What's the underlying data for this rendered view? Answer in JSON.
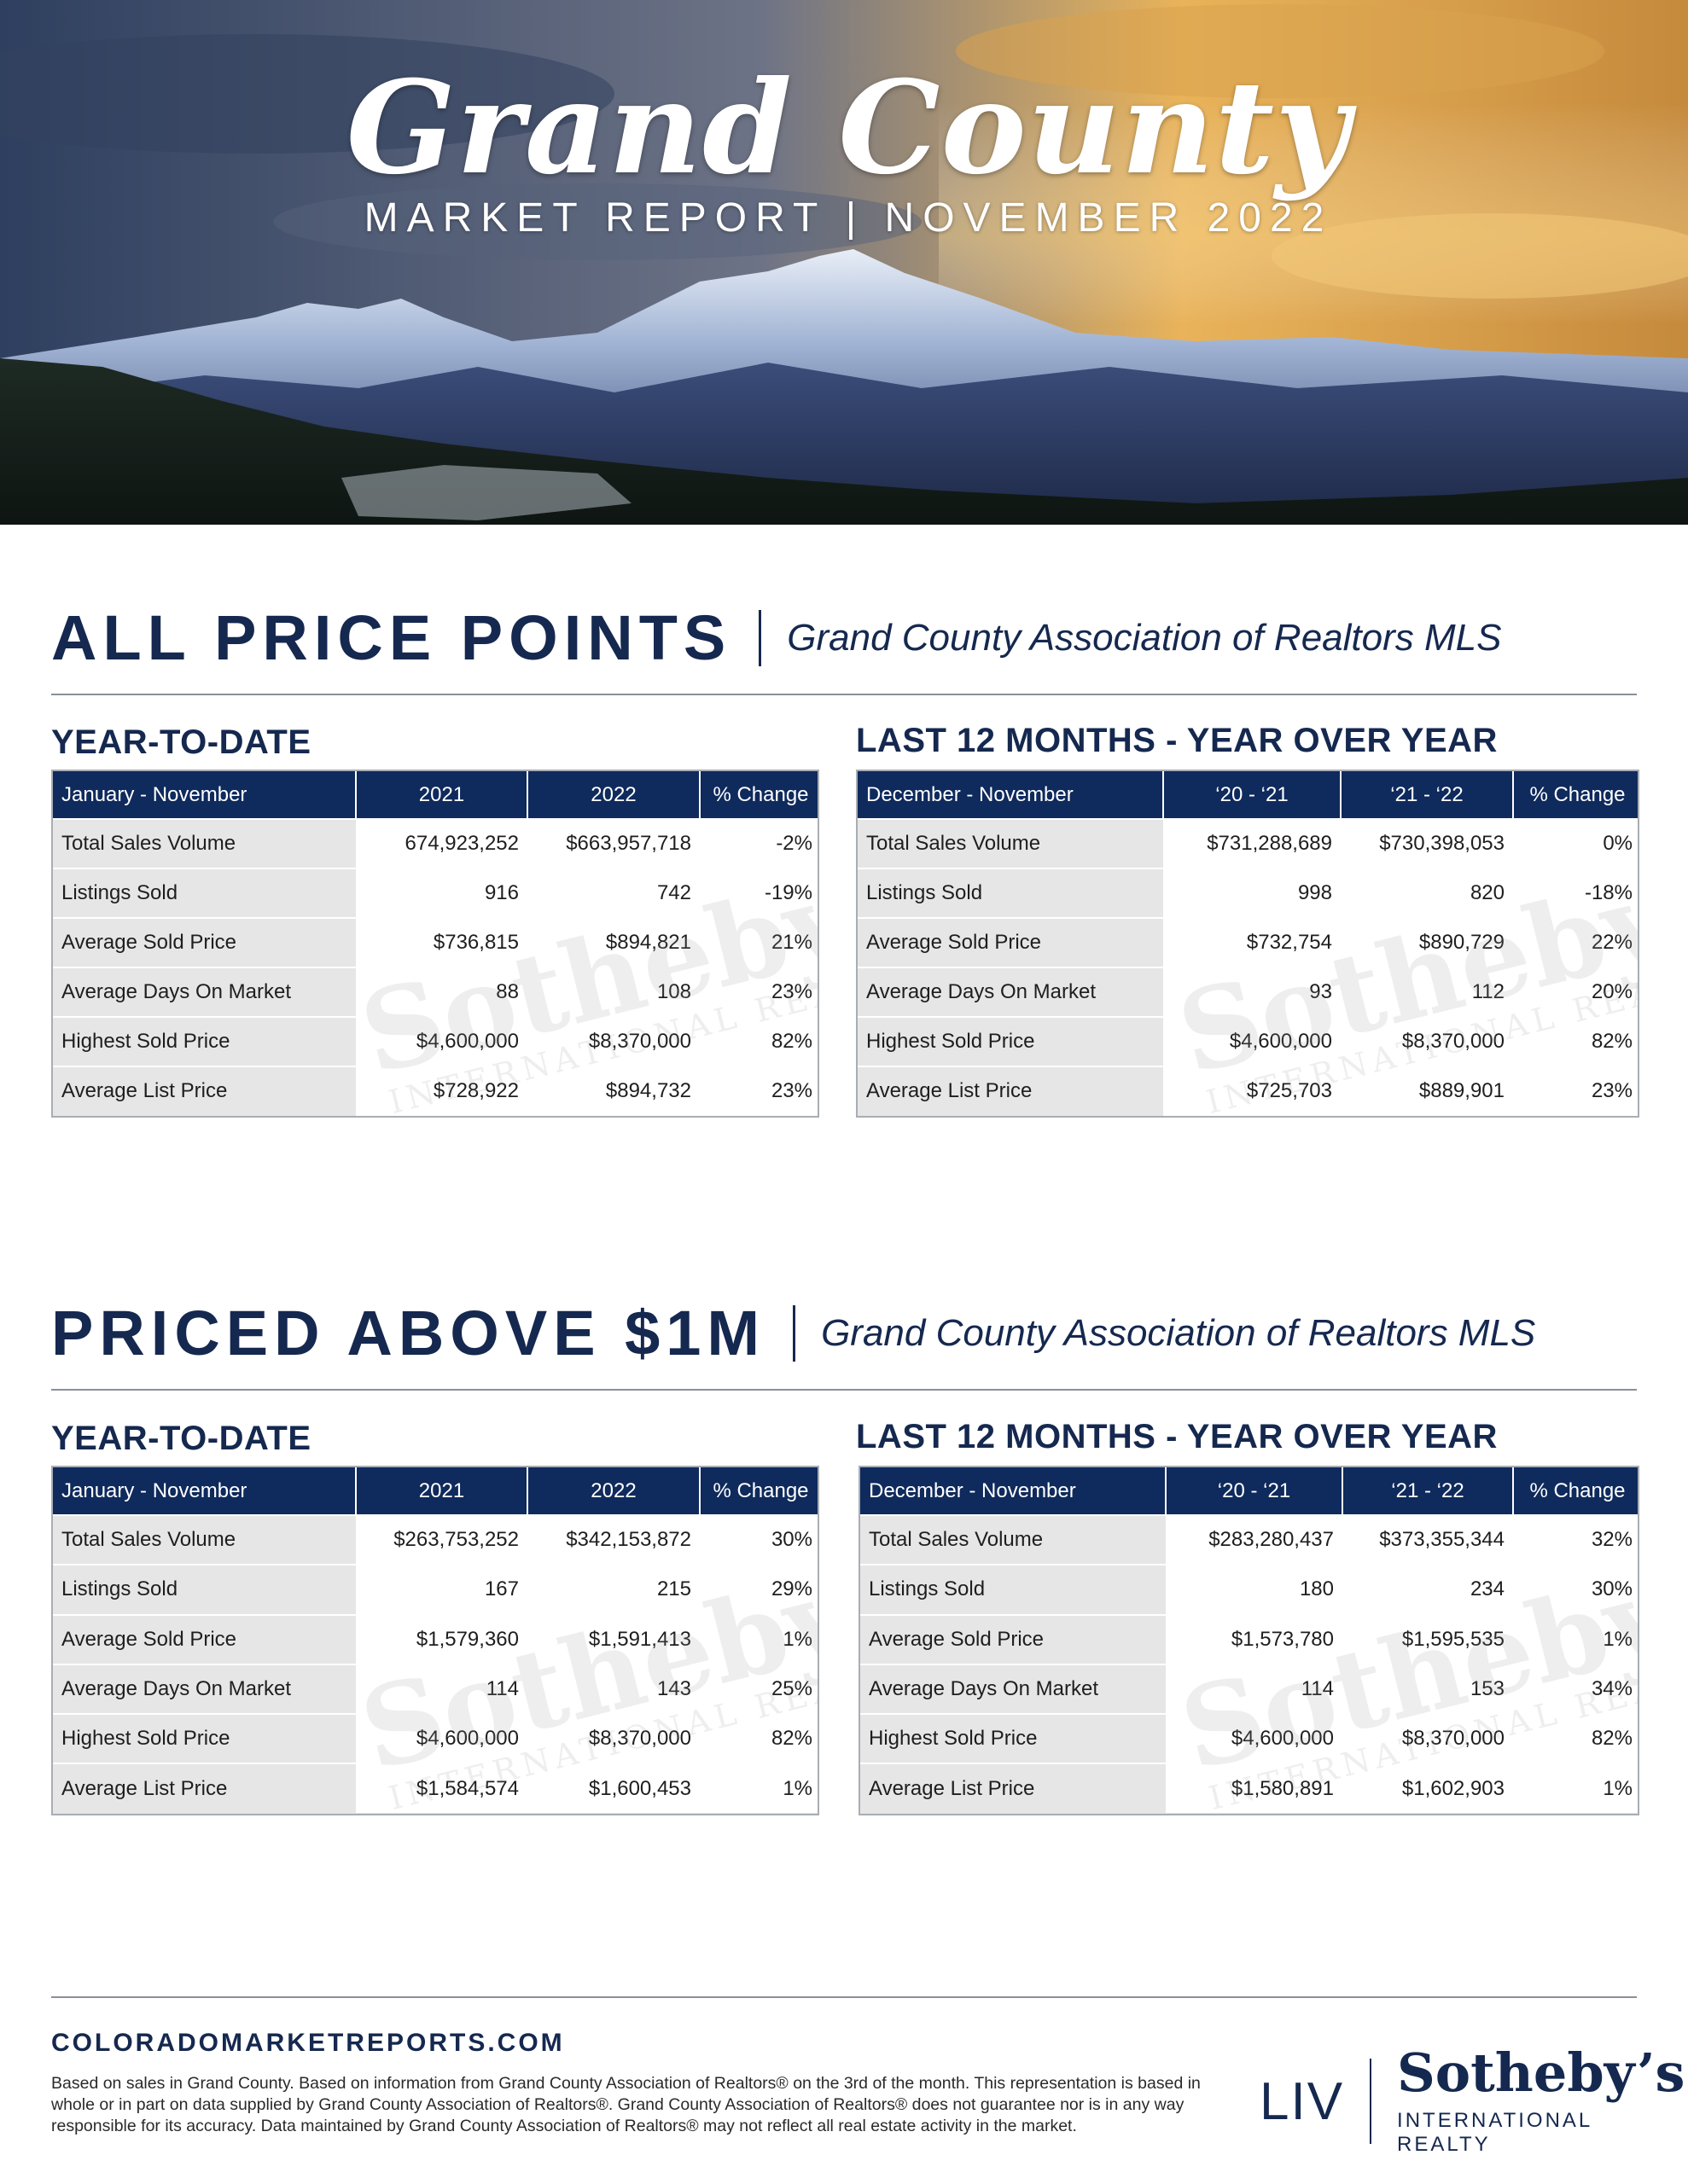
{
  "header": {
    "title": "Grand County",
    "subtitle": "MARKET REPORT | NOVEMBER 2022"
  },
  "sections": [
    {
      "title": "ALL PRICE POINTS",
      "source": "Grand County Association of Realtors MLS",
      "ytd": {
        "heading": "YEAR-TO-DATE",
        "columns": [
          "January - November",
          "2021",
          "2022",
          "% Change"
        ],
        "rows": [
          [
            "Total Sales Volume",
            "674,923,252",
            "$663,957,718",
            "-2%"
          ],
          [
            "Listings Sold",
            "916",
            "742",
            "-19%"
          ],
          [
            "Average Sold Price",
            "$736,815",
            "$894,821",
            "21%"
          ],
          [
            "Average Days On Market",
            "88",
            "108",
            "23%"
          ],
          [
            "Highest Sold Price",
            "$4,600,000",
            "$8,370,000",
            "82%"
          ],
          [
            "Average List Price",
            "$728,922",
            "$894,732",
            "23%"
          ]
        ]
      },
      "ltm": {
        "heading": "LAST 12 MONTHS - YEAR OVER YEAR",
        "columns": [
          "December - November",
          "‘20 - ‘21",
          "‘21 - ‘22",
          "% Change"
        ],
        "rows": [
          [
            "Total Sales Volume",
            "$731,288,689",
            "$730,398,053",
            "0%"
          ],
          [
            "Listings Sold",
            "998",
            "820",
            "-18%"
          ],
          [
            "Average Sold Price",
            "$732,754",
            "$890,729",
            "22%"
          ],
          [
            "Average Days On Market",
            "93",
            "112",
            "20%"
          ],
          [
            "Highest Sold Price",
            "$4,600,000",
            "$8,370,000",
            "82%"
          ],
          [
            "Average List Price",
            "$725,703",
            "$889,901",
            "23%"
          ]
        ]
      }
    },
    {
      "title": "PRICED ABOVE $1M",
      "source": "Grand County Association of Realtors MLS",
      "ytd": {
        "heading": "YEAR-TO-DATE",
        "columns": [
          "January - November",
          "2021",
          "2022",
          "% Change"
        ],
        "rows": [
          [
            "Total Sales Volume",
            "$263,753,252",
            "$342,153,872",
            "30%"
          ],
          [
            "Listings Sold",
            "167",
            "215",
            "29%"
          ],
          [
            "Average Sold Price",
            "$1,579,360",
            "$1,591,413",
            "1%"
          ],
          [
            "Average Days On Market",
            "114",
            "143",
            "25%"
          ],
          [
            "Highest Sold Price",
            "$4,600,000",
            "$8,370,000",
            "82%"
          ],
          [
            "Average List Price",
            "$1,584,574",
            "$1,600,453",
            "1%"
          ]
        ]
      },
      "ltm": {
        "heading": "LAST 12 MONTHS - YEAR OVER YEAR",
        "columns": [
          "December - November",
          "‘20 - ‘21",
          "‘21 - ‘22",
          "% Change"
        ],
        "rows": [
          [
            "Total Sales Volume",
            "$283,280,437",
            "$373,355,344",
            "32%"
          ],
          [
            "Listings Sold",
            "180",
            "234",
            "30%"
          ],
          [
            "Average Sold Price",
            "$1,573,780",
            "$1,595,535",
            "1%"
          ],
          [
            "Average Days On Market",
            "114",
            "153",
            "34%"
          ],
          [
            "Highest Sold Price",
            "$4,600,000",
            "$8,370,000",
            "82%"
          ],
          [
            "Average List Price",
            "$1,580,891",
            "$1,602,903",
            "1%"
          ]
        ]
      }
    }
  ],
  "watermark": {
    "brand": "Sotheby's",
    "tag": "INTERNATIONAL REALTY"
  },
  "footer": {
    "url": "COLORADOMARKETREPORTS.COM",
    "note": "Based on sales in Grand County. Based on information from Grand County Association of Realtors® on the 3rd of the month. This representation is based in whole or in part on data supplied by Grand County Association of Realtors®. Grand County Association of Realtors® does not guarantee nor is in any way responsible for its accuracy. Data maintained by Grand County Association of Realtors® may not reflect all real estate activity in the market.",
    "logo_liv": "LIV",
    "logo_brand": "Sotheby’s",
    "logo_tag": "INTERNATIONAL REALTY"
  },
  "colors": {
    "navy": "#0f2a5c",
    "title": "#15284f",
    "label_bg": "#e6e6e6"
  }
}
